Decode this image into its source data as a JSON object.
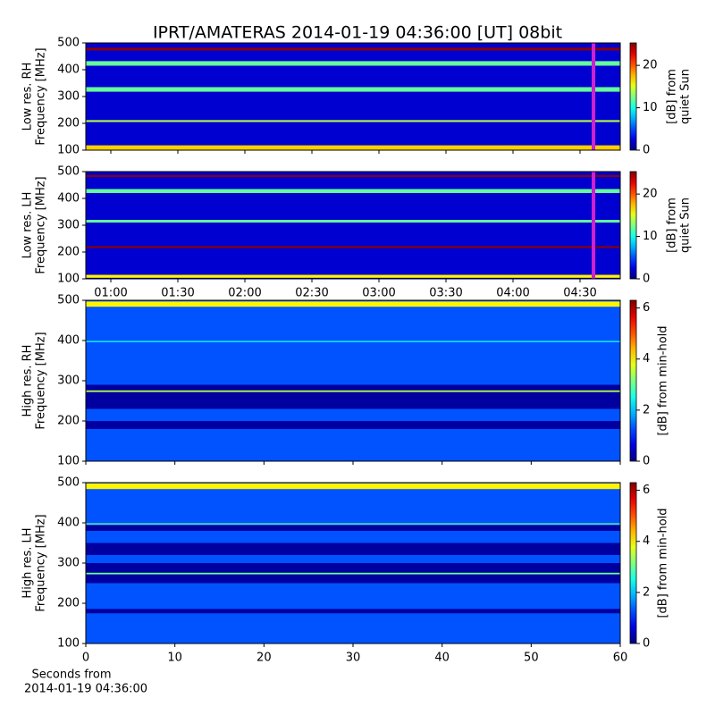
{
  "figure": {
    "title": "IPRT/AMATERAS 2014-01-19 04:36:00 [UT]   08bit"
  },
  "chart_data": [
    {
      "type": "spectrogram",
      "ylabel": [
        "Low res. RH",
        "Frequency [MHz]"
      ],
      "ylim": [
        100,
        500
      ],
      "yticks": [
        100,
        200,
        300,
        400,
        500
      ],
      "xlim": [
        48.8,
        288
      ],
      "xticks": [
        60,
        90,
        120,
        150,
        180,
        210,
        240,
        270
      ],
      "colorbar": {
        "label": [
          "[dB] from",
          "quiet Sun"
        ],
        "lim": [
          0,
          25.3
        ],
        "ticks": [
          0,
          10,
          20
        ]
      },
      "background": 2,
      "bands": [
        {
          "from": 472,
          "to": 482,
          "level": 25
        },
        {
          "from": 415,
          "to": 432,
          "level": 12
        },
        {
          "from": 318,
          "to": 335,
          "level": 12
        },
        {
          "from": 205,
          "to": 212,
          "level": 14
        },
        {
          "from": 100,
          "to": 118,
          "level": 17
        }
      ],
      "marker": {
        "x": 276,
        "color": "#d020d0"
      }
    },
    {
      "type": "spectrogram",
      "ylabel": [
        "Low res. LH",
        "Frequency [MHz]"
      ],
      "ylim": [
        100,
        500
      ],
      "yticks": [
        100,
        200,
        300,
        400,
        500
      ],
      "xlim": [
        48.8,
        288
      ],
      "xticks": [
        {
          "value": 60,
          "label": "01:00"
        },
        {
          "value": 90,
          "label": "01:30"
        },
        {
          "value": 120,
          "label": "02:00"
        },
        {
          "value": 150,
          "label": "02:30"
        },
        {
          "value": 180,
          "label": "03:00"
        },
        {
          "value": 210,
          "label": "03:30"
        },
        {
          "value": 240,
          "label": "04:00"
        },
        {
          "value": 270,
          "label": "04:30"
        }
      ],
      "colorbar": {
        "label": [
          "[dB] from",
          "quiet Sun"
        ],
        "lim": [
          0,
          25.3
        ],
        "ticks": [
          0,
          10,
          20
        ]
      },
      "background": 2,
      "bands": [
        {
          "from": 480,
          "to": 487,
          "level": 25
        },
        {
          "from": 420,
          "to": 435,
          "level": 12
        },
        {
          "from": 310,
          "to": 320,
          "level": 12
        },
        {
          "from": 215,
          "to": 222,
          "level": 25
        },
        {
          "from": 104,
          "to": 115,
          "level": 16
        }
      ],
      "marker": {
        "x": 276,
        "color": "#d020d0"
      }
    },
    {
      "type": "spectrogram",
      "ylabel": [
        "High res. RH",
        "Frequency [MHz]"
      ],
      "ylim": [
        100,
        500
      ],
      "yticks": [
        100,
        200,
        300,
        400,
        500
      ],
      "xlim": [
        0,
        60
      ],
      "xticks": [
        0,
        10,
        20,
        30,
        40,
        50,
        60
      ],
      "colorbar": {
        "label": [
          "[dB] from min-hold"
        ],
        "lim": [
          0,
          6.3
        ],
        "ticks": [
          0,
          2,
          4,
          6
        ]
      },
      "background": 1.3,
      "bands": [
        {
          "from": 484,
          "to": 497,
          "level": 4
        },
        {
          "from": 230,
          "to": 290,
          "level": 0.2
        },
        {
          "from": 180,
          "to": 200,
          "level": 0.2
        },
        {
          "from": 272,
          "to": 276,
          "level": 3.5
        },
        {
          "from": 396,
          "to": 399,
          "level": 2.5
        }
      ],
      "marker": null
    },
    {
      "type": "spectrogram",
      "ylabel": [
        "High res. LH",
        "Frequency [MHz]"
      ],
      "ylim": [
        100,
        500
      ],
      "yticks": [
        100,
        200,
        300,
        400,
        500
      ],
      "xlim": [
        0,
        60
      ],
      "xticks": [
        0,
        10,
        20,
        30,
        40,
        50,
        60
      ],
      "xlabel": [
        "Seconds from",
        "2014-01-19 04:36:00"
      ],
      "colorbar": {
        "label": [
          "[dB] from min-hold"
        ],
        "lim": [
          0,
          6.3
        ],
        "ticks": [
          0,
          2,
          4,
          6
        ]
      },
      "background": 1.3,
      "bands": [
        {
          "from": 484,
          "to": 498,
          "level": 4
        },
        {
          "from": 380,
          "to": 394,
          "level": 0.2
        },
        {
          "from": 320,
          "to": 350,
          "level": 0.2
        },
        {
          "from": 250,
          "to": 300,
          "level": 0.2
        },
        {
          "from": 175,
          "to": 186,
          "level": 0.2
        },
        {
          "from": 272,
          "to": 276,
          "level": 3
        },
        {
          "from": 396,
          "to": 399,
          "level": 3
        }
      ],
      "marker": null
    }
  ]
}
